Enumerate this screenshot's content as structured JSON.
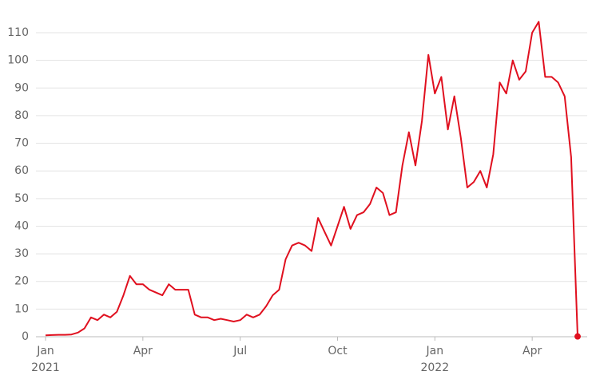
{
  "chart_data": {
    "type": "line",
    "categories": [
      "Jan 2021",
      null,
      null,
      null,
      null,
      null,
      null,
      null,
      null,
      null,
      null,
      null,
      null,
      null,
      null,
      "Apr",
      null,
      null,
      null,
      null,
      null,
      null,
      null,
      null,
      null,
      null,
      null,
      null,
      null,
      null,
      "Jul",
      null,
      null,
      null,
      null,
      null,
      null,
      null,
      null,
      null,
      null,
      null,
      null,
      null,
      null,
      "Oct",
      null,
      null,
      null,
      null,
      null,
      null,
      null,
      null,
      null,
      null,
      null,
      null,
      null,
      null,
      "Jan 2022",
      null,
      null,
      null,
      null,
      null,
      null,
      null,
      null,
      null,
      null,
      null,
      null,
      null,
      null,
      "Apr",
      null,
      null,
      null,
      null,
      null,
      null,
      null
    ],
    "series": [
      {
        "color": "#e0101f",
        "values": [
          0.5,
          0.6,
          0.7,
          0.7,
          0.8,
          1.5,
          3,
          7,
          6,
          8,
          7,
          9,
          15,
          22,
          19,
          19,
          17,
          16,
          15,
          19,
          17,
          17,
          17,
          8,
          7,
          7,
          6,
          6.5,
          6,
          5.5,
          6,
          8,
          7,
          8,
          11,
          15,
          17,
          28,
          33,
          34,
          33,
          31,
          43,
          38,
          33,
          40,
          47,
          39,
          44,
          45,
          48,
          54,
          52,
          44,
          45,
          62,
          74,
          62,
          78,
          102,
          88,
          94,
          75,
          87,
          72,
          54,
          56,
          60,
          54,
          66,
          92,
          88,
          100,
          93,
          96,
          110,
          114,
          94,
          94,
          92,
          87,
          65,
          0.1
        ]
      }
    ],
    "ylim": [
      0,
      120
    ],
    "yticks": [
      0,
      10,
      20,
      30,
      40,
      50,
      60,
      70,
      80,
      90,
      100,
      110
    ],
    "grid": true,
    "end_marker": true
  }
}
